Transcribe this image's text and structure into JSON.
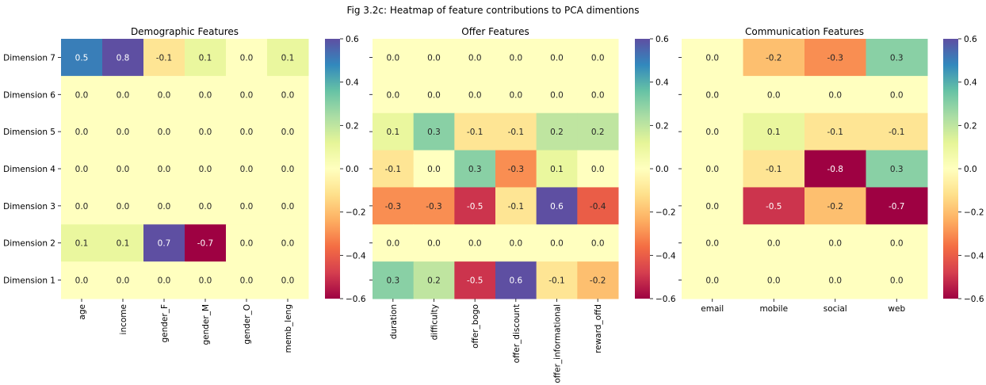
{
  "figure": {
    "title": "Fig 3.2c: Heatmap of feature contributions to PCA dimentions"
  },
  "chart_data": [
    {
      "type": "heatmap",
      "title": "Demographic Features",
      "x": [
        "age",
        "income",
        "gender_F",
        "gender_M",
        "gender_O",
        "memb_leng"
      ],
      "y": [
        "Dimension 7",
        "Dimension 6",
        "Dimension 5",
        "Dimension 4",
        "Dimension 3",
        "Dimension 2",
        "Dimension 1"
      ],
      "values": [
        [
          0.5,
          0.8,
          -0.1,
          0.1,
          -0.0,
          0.1
        ],
        [
          -0.0,
          0.0,
          -0.0,
          -0.0,
          0.0,
          -0.0
        ],
        [
          -0.0,
          -0.0,
          -0.0,
          0.0,
          0.0,
          0.0
        ],
        [
          -0.0,
          -0.0,
          -0.0,
          0.0,
          0.0,
          0.0
        ],
        [
          0.0,
          -0.0,
          -0.0,
          0.0,
          0.0,
          -0.0
        ],
        [
          0.1,
          0.1,
          0.7,
          -0.7,
          0.0,
          -0.0
        ],
        [
          -0.0,
          -0.0,
          -0.0,
          0.0,
          0.0,
          -0.0
        ]
      ],
      "colorbar": {
        "vmin": -0.6,
        "vmax": 0.6,
        "ticks": [
          "−0.6",
          "−0.4",
          "−0.2",
          "0.0",
          "0.2",
          "0.4",
          "0.6"
        ]
      },
      "colormap": "Spectral",
      "show_y_labels": true
    },
    {
      "type": "heatmap",
      "title": "Offer Features",
      "x": [
        "duration",
        "difficulty",
        "offer_bogo",
        "offer_discount",
        "offer_informational",
        "reward_offd"
      ],
      "y": [
        "Dimension 7",
        "Dimension 6",
        "Dimension 5",
        "Dimension 4",
        "Dimension 3",
        "Dimension 2",
        "Dimension 1"
      ],
      "values": [
        [
          0.0,
          0.0,
          0.0,
          0.0,
          -0.0,
          -0.0
        ],
        [
          -0.0,
          -0.0,
          0.0,
          0.0,
          -0.0,
          -0.0
        ],
        [
          0.1,
          0.3,
          -0.1,
          -0.1,
          0.2,
          0.2
        ],
        [
          -0.1,
          -0.0,
          0.3,
          -0.3,
          0.1,
          0.0
        ],
        [
          -0.3,
          -0.3,
          -0.5,
          -0.1,
          0.6,
          -0.4
        ],
        [
          -0.0,
          -0.0,
          -0.0,
          0.0,
          0.0,
          -0.0
        ],
        [
          0.3,
          0.2,
          -0.5,
          0.6,
          -0.1,
          -0.2
        ]
      ],
      "colorbar": {
        "vmin": -0.6,
        "vmax": 0.6,
        "ticks": [
          "−0.6",
          "−0.4",
          "−0.2",
          "0.0",
          "0.2",
          "0.4",
          "0.6"
        ]
      },
      "colormap": "Spectral",
      "show_y_labels": false
    },
    {
      "type": "heatmap",
      "title": "Communication Features",
      "x": [
        "email",
        "mobile",
        "social",
        "web"
      ],
      "y": [
        "Dimension 7",
        "Dimension 6",
        "Dimension 5",
        "Dimension 4",
        "Dimension 3",
        "Dimension 2",
        "Dimension 1"
      ],
      "values": [
        [
          -0.0,
          -0.2,
          -0.3,
          0.3
        ],
        [
          -0.0,
          -0.0,
          -0.0,
          0.0
        ],
        [
          -0.0,
          0.1,
          -0.1,
          -0.1
        ],
        [
          -0.0,
          -0.1,
          -0.8,
          0.3
        ],
        [
          -0.0,
          -0.5,
          -0.2,
          -0.7
        ],
        [
          -0.0,
          0.0,
          0.0,
          0.0
        ],
        [
          0.0,
          0.0,
          -0.0,
          0.0
        ]
      ],
      "colorbar": {
        "vmin": -0.6,
        "vmax": 0.6,
        "ticks": [
          "−0.6",
          "−0.4",
          "−0.2",
          "0.0",
          "0.2",
          "0.4",
          "0.6"
        ]
      },
      "colormap": "Spectral",
      "show_y_labels": false
    }
  ]
}
